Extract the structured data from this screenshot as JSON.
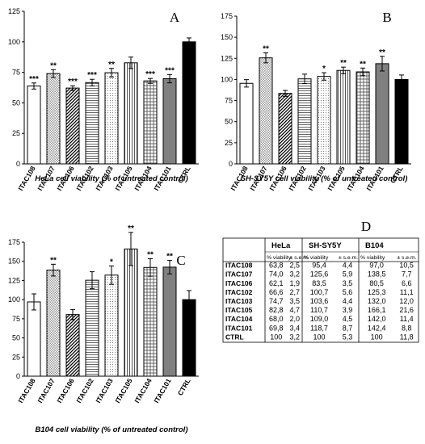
{
  "chart_data": [
    {
      "type": "bar",
      "panel_letter": "A",
      "title": "",
      "xlabel": "HeLa cell viability (% of untreated control)",
      "ylabel": "",
      "ylim": [
        0,
        125
      ],
      "yticks": [
        "0",
        "25",
        "50",
        "75",
        "100",
        "125"
      ],
      "categories": [
        "ITAC108",
        "ITAC107",
        "ITAC106",
        "ITAC102",
        "ITAC103",
        "ITAC105",
        "ITAC104",
        "ITAC101",
        "CTRL"
      ],
      "values": [
        63.8,
        74.0,
        62.1,
        66.6,
        74.7,
        82.8,
        68.0,
        69.8,
        100
      ],
      "errors": [
        2.5,
        3.2,
        1.9,
        2.7,
        3.5,
        4.7,
        2.0,
        3.4,
        3.2
      ],
      "significance": [
        "***",
        "**",
        "***",
        "***",
        "**",
        "",
        "***",
        "***",
        ""
      ],
      "grid": false,
      "legend": "none"
    },
    {
      "type": "bar",
      "panel_letter": "B",
      "title": "",
      "xlabel": "SH-SY5Y cell viability (% of untreated control)",
      "ylabel": "",
      "ylim": [
        0,
        175
      ],
      "yticks": [
        "0",
        "25",
        "50",
        "75",
        "100",
        "125",
        "150",
        "175"
      ],
      "categories": [
        "ITAC108",
        "ITAC107",
        "ITAC106",
        "ITAC102",
        "ITAC103",
        "ITAC105",
        "ITAC104",
        "ITAC101",
        "CTRL"
      ],
      "values": [
        95.4,
        125.6,
        83.5,
        100.7,
        103.6,
        110.7,
        109.0,
        118.7,
        100
      ],
      "errors": [
        4.4,
        5.9,
        3.5,
        5.6,
        4.4,
        3.9,
        4.5,
        8.7,
        5.3
      ],
      "significance": [
        "",
        "**",
        "",
        "",
        "*",
        "**",
        "**",
        "**",
        ""
      ],
      "grid": false,
      "legend": "none"
    },
    {
      "type": "bar",
      "panel_letter": "C",
      "title": "",
      "xlabel": "B104 cell viability (% of untreated control)",
      "ylabel": "",
      "ylim": [
        0,
        175
      ],
      "yticks": [
        "0",
        "25",
        "50",
        "75",
        "100",
        "125",
        "150",
        "175"
      ],
      "categories": [
        "ITAC108",
        "ITAC107",
        "ITAC106",
        "ITAC102",
        "ITAC103",
        "ITAC105",
        "ITAC104",
        "ITAC101",
        "CTRL"
      ],
      "values": [
        97.0,
        138.5,
        80.5,
        125.3,
        132.0,
        166.1,
        142.0,
        142.4,
        100
      ],
      "errors": [
        10.5,
        7.7,
        6.6,
        11.1,
        12.0,
        21.6,
        11.4,
        8.8,
        11.8
      ],
      "significance": [
        "",
        "**",
        "",
        "",
        "*",
        "**",
        "**",
        "**",
        ""
      ],
      "grid": false,
      "legend": "none"
    },
    {
      "type": "table",
      "panel_letter": "D",
      "groups": [
        "HeLa",
        "SH-SY5Y",
        "B104"
      ],
      "subheaders": [
        "% viability",
        "± s.e.m."
      ],
      "rows": [
        {
          "label": "ITAC108",
          "cells": [
            "63,8",
            "2,5",
            "95,4",
            "4,4",
            "97,0",
            "10,5"
          ]
        },
        {
          "label": "ITAC107",
          "cells": [
            "74,0",
            "3,2",
            "125,6",
            "5,9",
            "138,5",
            "7,7"
          ]
        },
        {
          "label": "ITAC106",
          "cells": [
            "62,1",
            "1,9",
            "83,5",
            "3,5",
            "80,5",
            "6,6"
          ]
        },
        {
          "label": "ITAC102",
          "cells": [
            "66,6",
            "2,7",
            "100,7",
            "5,6",
            "125,3",
            "11,1"
          ]
        },
        {
          "label": "ITAC103",
          "cells": [
            "74,7",
            "3,5",
            "103,6",
            "4,4",
            "132,0",
            "12,0"
          ]
        },
        {
          "label": "ITAC105",
          "cells": [
            "82,8",
            "4,7",
            "110,7",
            "3,9",
            "166,1",
            "21,6"
          ]
        },
        {
          "label": "ITAC104",
          "cells": [
            "68,0",
            "2,0",
            "109,0",
            "4,5",
            "142,0",
            "11,4"
          ]
        },
        {
          "label": "ITAC101",
          "cells": [
            "69,8",
            "3,4",
            "118,7",
            "8,7",
            "142,4",
            "8,8"
          ]
        },
        {
          "label": "CTRL",
          "cells": [
            "100",
            "3,2",
            "100",
            "5,3",
            "100",
            "11,8"
          ]
        }
      ]
    }
  ],
  "bar_styles": {
    "stroke_color": "#000000",
    "fills": [
      "white",
      "grid-gray",
      "diagonal",
      "horizontal",
      "dots",
      "vertical",
      "crosshatch",
      "solid-gray",
      "solid-black"
    ],
    "colors": {
      "solid_gray": "#808080",
      "solid_black": "#000000",
      "pattern_gray": "#bdbdbd"
    }
  }
}
